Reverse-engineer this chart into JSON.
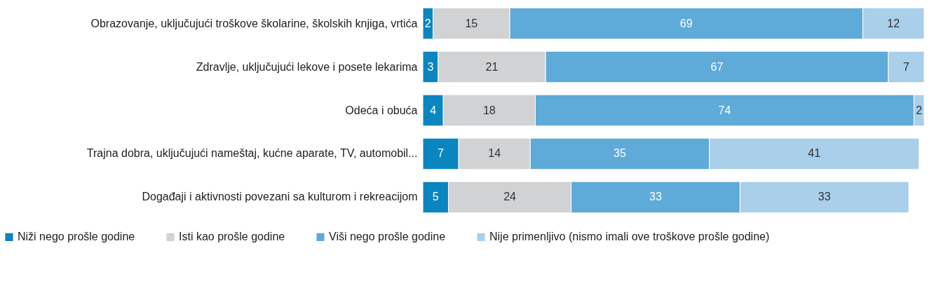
{
  "chart_data": {
    "type": "bar",
    "orientation": "horizontal",
    "stacked": true,
    "data_labels": true,
    "legend": "bottom",
    "categories": [
      "Obrazovanje, uključujući troškove školarine, školskih knjiga, vrtića",
      "Zdravlje, uključujući lekove i posete lekarima",
      "Odeća i obuća",
      "Trajna dobra, uključujući nameštaj, kućne aparate, TV, automobil...",
      "Događaji i aktivnosti povezani sa kulturom i rekreacijom"
    ],
    "series": [
      {
        "name": "Niži nego prošle godine",
        "color": "#0a85c0",
        "values": [
          2,
          3,
          4,
          7,
          5
        ]
      },
      {
        "name": "Isti kao prošle godine",
        "color": "#d1d2d4",
        "values": [
          15,
          21,
          18,
          14,
          24
        ]
      },
      {
        "name": "Viši nego prošle godine",
        "color": "#5eaad8",
        "values": [
          69,
          67,
          74,
          35,
          33
        ]
      },
      {
        "name": "Nije primenljivo (nismo imali ove troškove prošle godine)",
        "color": "#a9cfea",
        "values": [
          12,
          7,
          2,
          41,
          33
        ]
      }
    ]
  }
}
